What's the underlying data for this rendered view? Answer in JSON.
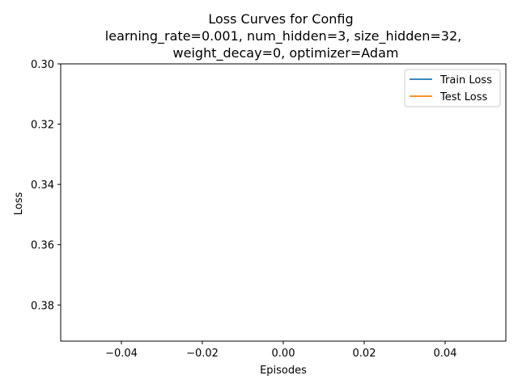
{
  "chart_data": {
    "type": "line",
    "title_lines": [
      "Loss Curves for Config",
      "learning_rate=0.001, num_hidden=3, size_hidden=32,",
      "weight_decay=0, optimizer=Adam"
    ],
    "xlabel": "Episodes",
    "ylabel": "Loss",
    "xlim": [
      -0.055,
      0.055
    ],
    "ylim": [
      0.392,
      0.3
    ],
    "y_inverted": true,
    "x_ticks": [
      -0.04,
      -0.02,
      0.0,
      0.02,
      0.04
    ],
    "x_tick_labels": [
      "−0.04",
      "−0.02",
      "0.00",
      "0.02",
      "0.04"
    ],
    "y_ticks": [
      0.3,
      0.32,
      0.34,
      0.36,
      0.38
    ],
    "y_tick_labels": [
      "0.30",
      "0.32",
      "0.34",
      "0.36",
      "0.38"
    ],
    "grid": false,
    "legend_position": "top-right",
    "series": [
      {
        "name": "Train Loss",
        "color": "#1f77b4",
        "x": [],
        "y": []
      },
      {
        "name": "Test Loss",
        "color": "#ff7f0e",
        "x": [],
        "y": []
      }
    ]
  }
}
